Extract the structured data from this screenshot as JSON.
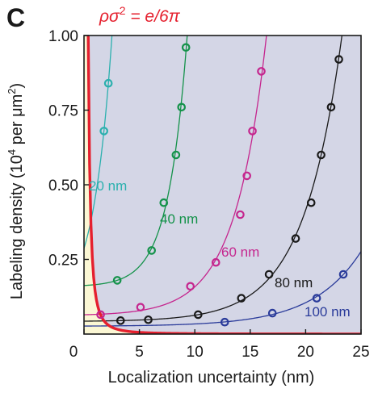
{
  "chart_data": {
    "type": "scatter",
    "panel_label": "c",
    "xlabel": "Localization uncertainty (nm)",
    "ylabel_parts": [
      "Labeling density (10",
      "4",
      " per μm",
      "2",
      ")"
    ],
    "xlim": [
      0,
      25
    ],
    "ylim": [
      0,
      1.0
    ],
    "x_ticks": [
      0,
      5,
      10,
      15,
      20,
      25
    ],
    "y_ticks": [
      0.25,
      0.5,
      0.75,
      1.0
    ],
    "x_tick_labels": [
      "0",
      "5",
      "10",
      "15",
      "20",
      "25"
    ],
    "y_tick_labels": [
      "0.25",
      "0.50",
      "0.75",
      "1.00"
    ],
    "regions": {
      "below_curve": "#fbf7d4",
      "above_curve": "#d4d6e6"
    },
    "threshold_curve": {
      "label_parts": [
        "ρσ",
        "2",
        " = e/6π"
      ],
      "color": "#e5202e",
      "constant": 0.1442
    },
    "series": [
      {
        "name": "20 nm",
        "color": "#2bb0ae",
        "points": [
          [
            1.8,
            0.68
          ],
          [
            2.2,
            0.84
          ]
        ]
      },
      {
        "name": "40 nm",
        "color": "#14924a",
        "points": [
          [
            3.0,
            0.18
          ],
          [
            6.1,
            0.28
          ],
          [
            7.2,
            0.44
          ],
          [
            8.3,
            0.6
          ],
          [
            8.8,
            0.76
          ],
          [
            9.2,
            0.96
          ]
        ]
      },
      {
        "name": "60 nm",
        "color": "#c5268e",
        "points": [
          [
            1.5,
            0.065
          ],
          [
            5.1,
            0.09
          ],
          [
            9.6,
            0.16
          ],
          [
            11.9,
            0.24
          ],
          [
            14.1,
            0.4
          ],
          [
            14.7,
            0.53
          ],
          [
            15.2,
            0.68
          ],
          [
            16.0,
            0.88
          ]
        ]
      },
      {
        "name": "80 nm",
        "color": "#1a1a1a",
        "points": [
          [
            3.3,
            0.045
          ],
          [
            5.8,
            0.048
          ],
          [
            10.3,
            0.065
          ],
          [
            14.2,
            0.12
          ],
          [
            16.7,
            0.2
          ],
          [
            19.1,
            0.32
          ],
          [
            20.5,
            0.44
          ],
          [
            21.4,
            0.6
          ],
          [
            22.3,
            0.76
          ],
          [
            23.0,
            0.92
          ]
        ]
      },
      {
        "name": "100 nm",
        "color": "#2a3b9a",
        "points": [
          [
            12.7,
            0.04
          ],
          [
            17.0,
            0.07
          ],
          [
            21.0,
            0.12
          ],
          [
            23.4,
            0.2
          ]
        ]
      }
    ]
  }
}
